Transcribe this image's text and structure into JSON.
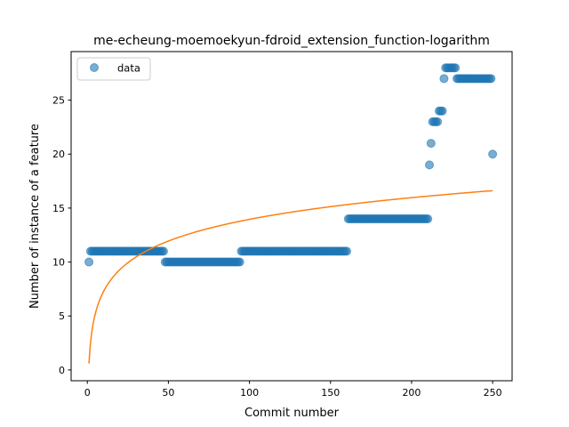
{
  "chart_data": {
    "type": "scatter",
    "title": "me-echeung-moemoekyun-fdroid_extension_function-logarithm",
    "xlabel": "Commit number",
    "ylabel": "Number of instance of a feature",
    "xlim": [
      -10,
      262
    ],
    "ylim": [
      -1,
      29.5
    ],
    "xticks": [
      0,
      50,
      100,
      150,
      200,
      250
    ],
    "yticks": [
      0,
      5,
      10,
      15,
      20,
      25
    ],
    "legend": {
      "placement": "top-left",
      "entries": [
        "data"
      ]
    },
    "grid": false,
    "colors": {
      "data": "#1f77b4",
      "fit": "#ff7f0e"
    },
    "series": [
      {
        "name": "data",
        "kind": "scatter",
        "segments": [
          {
            "x_from": 1,
            "x_to": 1,
            "y": 10
          },
          {
            "x_from": 2,
            "x_to": 47,
            "y": 11
          },
          {
            "x_from": 48,
            "x_to": 94,
            "y": 10
          },
          {
            "x_from": 95,
            "x_to": 160,
            "y": 11
          },
          {
            "x_from": 161,
            "x_to": 210,
            "y": 14
          },
          {
            "x_from": 211,
            "x_to": 211,
            "y": 19
          },
          {
            "x_from": 212,
            "x_to": 212,
            "y": 21
          },
          {
            "x_from": 213,
            "x_to": 216,
            "y": 23
          },
          {
            "x_from": 217,
            "x_to": 219,
            "y": 24
          },
          {
            "x_from": 220,
            "x_to": 220,
            "y": 27
          },
          {
            "x_from": 221,
            "x_to": 227,
            "y": 28
          },
          {
            "x_from": 228,
            "x_to": 249,
            "y": 27
          },
          {
            "x_from": 250,
            "x_to": 250,
            "y": 20
          }
        ]
      },
      {
        "kind": "line",
        "fit": {
          "form": "a*ln(x)+b",
          "a": 2.9,
          "b": 0.6,
          "x_from": 1,
          "x_to": 250
        }
      }
    ]
  }
}
